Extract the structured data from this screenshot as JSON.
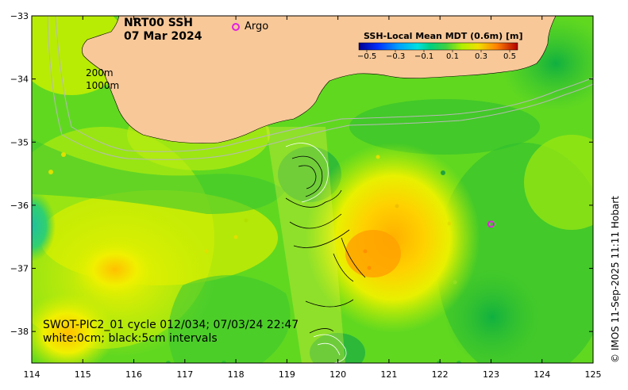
{
  "title": {
    "line1": "NRT00 SSH",
    "line2": "07 Mar 2024"
  },
  "argo_legend": {
    "label": "Argo",
    "color": "#e020e0"
  },
  "depth_contours": {
    "label1": "200m",
    "label2": "1000m"
  },
  "colorbar": {
    "title": "SSH-Local Mean MDT (0.6m) [m]",
    "ticks": [
      "−0.5",
      "−0.3",
      "−0.1",
      "0.1",
      "0.3",
      "0.5"
    ],
    "colors": [
      "#0000a0",
      "#0050ff",
      "#00c0ff",
      "#00e0a0",
      "#40d040",
      "#a0f000",
      "#f0f000",
      "#ffb000",
      "#ff5000",
      "#c00000"
    ]
  },
  "swot": {
    "line1": "SWOT-PIC2_01 cycle 012/034; 07/03/24 22:47",
    "line2": "white:0cm; black:5cm intervals"
  },
  "credit": "© IMOS 11-Sep-2025 11:11 Hobart",
  "axes": {
    "lon_ticks": [
      "114",
      "115",
      "116",
      "117",
      "118",
      "119",
      "120",
      "121",
      "122",
      "123",
      "124",
      "125"
    ],
    "lat_ticks": [
      "−33",
      "−34",
      "−35",
      "−36",
      "−37",
      "−38"
    ]
  },
  "argo_float": {
    "lon": 123.0,
    "lat": -36.3
  },
  "colors": {
    "land": "#f8c898",
    "ocean_base": "#60d820"
  }
}
